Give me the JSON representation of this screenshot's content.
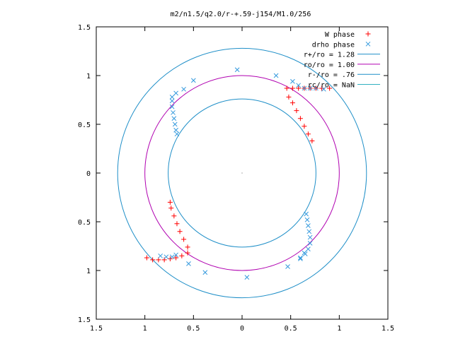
{
  "chart_data": {
    "type": "scatter",
    "title": "m2/n1.5/q2.0/r-+.59-j154/M1.0/256",
    "xlim": [
      -1.5,
      1.5
    ],
    "ylim": [
      -1.5,
      1.5
    ],
    "xticks": [
      -1.5,
      -1,
      -0.5,
      0,
      0.5,
      1,
      1.5
    ],
    "xtick_labels": [
      "1.5",
      "1",
      "0.5",
      "0",
      "0.5",
      "1",
      "1.5"
    ],
    "yticks": [
      1.5,
      1,
      0.5,
      0,
      -0.5,
      -1,
      -1.5
    ],
    "ytick_labels": [
      "1.5",
      "1",
      "0.5",
      "0",
      "0.5",
      "1",
      "1.5"
    ],
    "grid": false,
    "legend_position": "top-right",
    "colors": {
      "w_phase": "#ff0000",
      "drho_phase": "#3399dd",
      "r_plus": "#1f8fc8",
      "ro": "#b000b0",
      "r_minus": "#1f8fc8",
      "rc": "#30b0c0"
    },
    "legend": [
      {
        "label": "W phase",
        "marker": "plus",
        "color": "#ff0000"
      },
      {
        "label": "drho phase",
        "marker": "cross",
        "color": "#3399dd"
      },
      {
        "label": "r+/ro = 1.28",
        "marker": "line",
        "color": "#1f8fc8"
      },
      {
        "label": "ro/ro = 1.00",
        "marker": "line",
        "color": "#b000b0"
      },
      {
        "label": "r-/ro = .76",
        "marker": "line",
        "color": "#1f8fc8"
      },
      {
        "label": "rc/ro = NaN",
        "marker": "line",
        "color": "#30b0c0"
      }
    ],
    "circles": [
      {
        "name": "r+/ro = 1.28",
        "r": 1.28
      },
      {
        "name": "ro/ro = 1.00",
        "r": 1.0
      },
      {
        "name": "r-/ro = .76",
        "r": 0.76
      }
    ],
    "series": [
      {
        "name": "W phase",
        "segments": [
          [
            [
              0.46,
              0.87
            ],
            [
              0.52,
              0.87
            ],
            [
              0.58,
              0.87
            ],
            [
              0.64,
              0.87
            ],
            [
              0.7,
              0.87
            ],
            [
              0.76,
              0.87
            ],
            [
              0.82,
              0.87
            ],
            [
              0.9,
              0.87
            ],
            [
              0.48,
              0.78
            ],
            [
              0.52,
              0.72
            ],
            [
              0.56,
              0.64
            ],
            [
              0.6,
              0.56
            ],
            [
              0.64,
              0.48
            ],
            [
              0.68,
              0.4
            ],
            [
              0.72,
              0.33
            ]
          ],
          [
            [
              -0.98,
              -0.87
            ],
            [
              -0.92,
              -0.89
            ],
            [
              -0.86,
              -0.89
            ],
            [
              -0.8,
              -0.89
            ],
            [
              -0.74,
              -0.88
            ],
            [
              -0.68,
              -0.87
            ],
            [
              -0.62,
              -0.85
            ],
            [
              -0.56,
              -0.82
            ],
            [
              -0.56,
              -0.76
            ],
            [
              -0.6,
              -0.68
            ],
            [
              -0.64,
              -0.6
            ],
            [
              -0.67,
              -0.52
            ],
            [
              -0.7,
              -0.44
            ],
            [
              -0.73,
              -0.36
            ],
            [
              -0.74,
              -0.3
            ]
          ]
        ]
      },
      {
        "name": "drho phase",
        "segments": [
          [
            [
              -0.72,
              0.74
            ],
            [
              -0.72,
              0.68
            ],
            [
              -0.71,
              0.62
            ],
            [
              -0.7,
              0.56
            ],
            [
              -0.69,
              0.5
            ],
            [
              -0.68,
              0.44
            ],
            [
              -0.67,
              0.4
            ],
            [
              0.66,
              -0.42
            ],
            [
              0.67,
              -0.48
            ],
            [
              0.68,
              -0.54
            ],
            [
              0.69,
              -0.6
            ],
            [
              0.7,
              -0.66
            ],
            [
              0.7,
              -0.72
            ],
            [
              0.68,
              -0.78
            ],
            [
              0.65,
              -0.83
            ],
            [
              0.6,
              -0.87
            ],
            [
              -0.68,
              -0.84
            ],
            [
              -0.72,
              -0.86
            ],
            [
              -0.78,
              -0.86
            ],
            [
              -0.84,
              -0.85
            ]
          ],
          [
            [
              -0.72,
              0.78
            ],
            [
              -0.68,
              0.82
            ],
            [
              -0.6,
              0.86
            ],
            [
              -0.5,
              0.95
            ],
            [
              -0.05,
              1.06
            ],
            [
              0.35,
              1.0
            ],
            [
              0.52,
              0.94
            ],
            [
              0.58,
              0.9
            ],
            [
              0.64,
              0.87
            ],
            [
              0.7,
              0.87
            ],
            [
              0.76,
              0.87
            ],
            [
              0.84,
              0.86
            ],
            [
              -0.55,
              -0.93
            ],
            [
              -0.38,
              -1.02
            ],
            [
              0.05,
              -1.07
            ],
            [
              0.47,
              -0.96
            ],
            [
              0.6,
              -0.88
            ],
            [
              0.64,
              -0.82
            ]
          ]
        ]
      }
    ]
  }
}
